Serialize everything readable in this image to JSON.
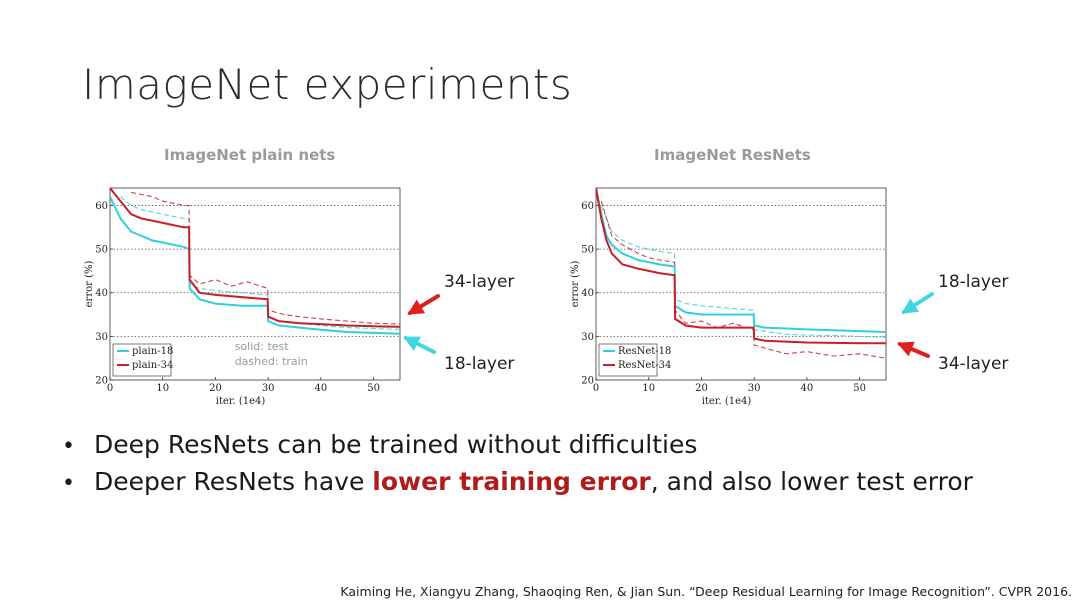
{
  "slide": {
    "title": "ImageNet experiments",
    "bullets": [
      {
        "parts": [
          {
            "text": "Deep ResNets can be trained without difficulties",
            "highlight": false
          }
        ]
      },
      {
        "parts": [
          {
            "text": "Deeper ResNets have ",
            "highlight": false
          },
          {
            "text": "lower training error",
            "highlight": true
          },
          {
            "text": ", and also lower test error",
            "highlight": false
          }
        ]
      }
    ],
    "bullet_glyph": "•",
    "citation": "Kaiming He, Xiangyu Zhang, Shaoqing Ren, & Jian Sun. “Deep Residual Learning for Image Recognition”. CVPR 2016.",
    "highlight_color": "#b01c1c"
  },
  "callouts": {
    "plain_34": "34-layer",
    "plain_18": "18-layer",
    "res_18": "18-layer",
    "res_34": "34-layer",
    "arrow_red": "#e02020",
    "arrow_cyan": "#40d8e0"
  },
  "chart_data": [
    {
      "type": "line",
      "title": "ImageNet plain nets",
      "xlabel": "iter. (1e4)",
      "ylabel": "error (%)",
      "xlim": [
        0,
        55
      ],
      "ylim": [
        20,
        64
      ],
      "xticks": [
        0,
        10,
        20,
        30,
        40,
        50
      ],
      "yticks": [
        20,
        30,
        40,
        50,
        60
      ],
      "grid": "horizontal-dotted",
      "legend_placement": "bottom-left",
      "annotation_lines": [
        "solid: test",
        "dashed: train"
      ],
      "series": [
        {
          "name": "plain-18",
          "color": "#30d0d8",
          "style": "solid",
          "x": [
            0,
            2,
            4,
            6,
            8,
            10,
            12,
            14,
            15,
            15.1,
            17,
            20,
            25,
            29.9,
            30,
            32,
            36,
            40,
            45,
            50,
            55
          ],
          "y": [
            62,
            57,
            54,
            53,
            52,
            51.5,
            51,
            50.5,
            50,
            41,
            38.5,
            37.5,
            37,
            37,
            33.5,
            32.5,
            32,
            31.5,
            31,
            30.8,
            30.6
          ]
        },
        {
          "name": "plain-34",
          "color": "#c81e28",
          "style": "solid",
          "x": [
            0,
            2,
            4,
            6,
            8,
            10,
            12,
            14,
            15,
            15.1,
            17,
            20,
            25,
            29.9,
            30,
            32,
            36,
            40,
            45,
            50,
            55
          ],
          "y": [
            64,
            61,
            58,
            57,
            56.5,
            56,
            55.5,
            55,
            55,
            43,
            40,
            39.5,
            39,
            38.5,
            34.5,
            33.5,
            33,
            32.8,
            32.5,
            32.3,
            32.2
          ]
        },
        {
          "name": "",
          "color": "#30d0d8",
          "style": "dashed",
          "x": [
            2,
            4,
            6,
            8,
            10,
            12,
            14,
            15,
            15.1,
            17,
            20,
            25,
            29.9,
            30,
            32,
            36,
            40,
            45,
            50,
            55
          ],
          "y": [
            62,
            60,
            59,
            58.5,
            58,
            57.5,
            57,
            57,
            42,
            41,
            40.5,
            40,
            39.5,
            34.5,
            33.5,
            33,
            32.5,
            32,
            31.8,
            31.6
          ]
        },
        {
          "name": "",
          "color": "#c81e28",
          "style": "dashed",
          "x": [
            4,
            6,
            8,
            10,
            12,
            14,
            15,
            15.1,
            17,
            20,
            23,
            26,
            29.9,
            30,
            33,
            36,
            40,
            45,
            50,
            55
          ],
          "y": [
            63,
            62.5,
            62,
            61,
            60.5,
            60,
            60,
            44,
            42,
            43,
            41.5,
            42.5,
            41,
            36,
            35,
            34.5,
            34,
            33.5,
            33,
            32.8
          ]
        }
      ]
    },
    {
      "type": "line",
      "title": "ImageNet ResNets",
      "xlabel": "iter. (1e4)",
      "ylabel": "error (%)",
      "xlim": [
        0,
        55
      ],
      "ylim": [
        20,
        64
      ],
      "xticks": [
        0,
        10,
        20,
        30,
        40,
        50
      ],
      "yticks": [
        20,
        30,
        40,
        50,
        60
      ],
      "grid": "horizontal-dotted",
      "legend_placement": "bottom-left",
      "series": [
        {
          "name": "ResNet-18",
          "color": "#30d0d8",
          "style": "solid",
          "x": [
            0,
            1,
            2,
            3,
            5,
            8,
            10,
            12,
            14.9,
            15,
            17,
            20,
            25,
            29.9,
            30,
            32,
            36,
            40,
            45,
            50,
            55
          ],
          "y": [
            64,
            58,
            53,
            51,
            49,
            47.5,
            47,
            46.5,
            46,
            37,
            35.5,
            35,
            35,
            35,
            32.5,
            32,
            31.8,
            31.6,
            31.4,
            31.2,
            31
          ]
        },
        {
          "name": "ResNet-34",
          "color": "#c81e28",
          "style": "solid",
          "x": [
            0,
            1,
            2,
            3,
            5,
            8,
            10,
            12,
            14.9,
            15,
            17,
            20,
            25,
            29.9,
            30,
            32,
            36,
            40,
            45,
            50,
            55
          ],
          "y": [
            64,
            57,
            52,
            49,
            46.5,
            45.5,
            45,
            44.5,
            44,
            34,
            32.5,
            32,
            32,
            32,
            29.5,
            29,
            28.8,
            28.6,
            28.5,
            28.4,
            28.4
          ]
        },
        {
          "name": "",
          "color": "#30d0d8",
          "style": "dashed",
          "x": [
            1,
            3,
            5,
            8,
            10,
            12,
            14.9,
            15,
            17,
            20,
            25,
            29.9,
            30,
            33,
            36,
            40,
            45,
            50,
            55
          ],
          "y": [
            60,
            54,
            52,
            50.5,
            50,
            49.5,
            49,
            38.5,
            37.5,
            37,
            36.5,
            36,
            31.5,
            31,
            30.5,
            30.3,
            30.2,
            30,
            29.8
          ]
        },
        {
          "name": "",
          "color": "#c81e28",
          "style": "dashed",
          "x": [
            1,
            3,
            5,
            8,
            10,
            12,
            14.9,
            15,
            17,
            20,
            23,
            26,
            29.9,
            30,
            33,
            36,
            40,
            45,
            50,
            55
          ],
          "y": [
            61,
            53,
            51,
            49,
            48,
            47.5,
            47,
            36,
            33,
            33.5,
            32,
            33,
            31.5,
            28,
            27,
            26,
            26.5,
            25.5,
            26,
            25
          ]
        }
      ]
    }
  ]
}
